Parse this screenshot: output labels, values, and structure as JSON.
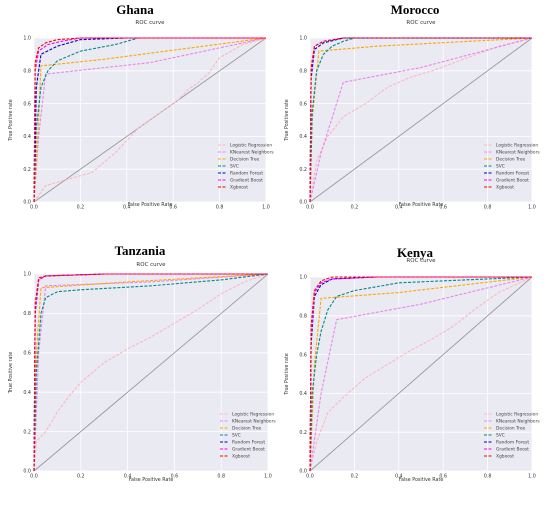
{
  "colors": {
    "Logistic Regression": "#ffb6c1",
    "KNearest Neighbors": "#ee82ee",
    "Decision Tree": "#ffa500",
    "SVC": "#008b8b",
    "Random Forest": "#0000cd",
    "Gradient Boost": "#ff00ff",
    "Xgboost": "#ff0000"
  },
  "chart_data": [
    {
      "type": "line",
      "country": "Ghana",
      "title": "ROC curve",
      "xlabel": "False Positive Rate",
      "ylabel": "True Positive rate",
      "xlim": [
        0,
        1
      ],
      "ylim": [
        0,
        1
      ],
      "xticks": [
        "0.0",
        "0.2",
        "0.4",
        "0.6",
        "0.8",
        "1.0"
      ],
      "yticks": [
        "0.0",
        "0.2",
        "0.4",
        "0.6",
        "0.8",
        "1.0"
      ],
      "grid": true,
      "legend_position": "bottom-right",
      "diagonal": true,
      "series": [
        {
          "name": "Logistic Regression",
          "x": [
            0,
            0.05,
            0.15,
            0.25,
            0.35,
            0.45,
            0.55,
            0.62,
            0.66,
            0.7,
            0.75,
            0.8,
            0.9,
            1.0
          ],
          "y": [
            0,
            0.1,
            0.14,
            0.18,
            0.3,
            0.45,
            0.55,
            0.62,
            0.68,
            0.72,
            0.78,
            0.88,
            0.96,
            1.0
          ]
        },
        {
          "name": "KNearest Neighbors",
          "x": [
            0,
            0.02,
            0.05,
            0.5,
            1.0
          ],
          "y": [
            0,
            0.4,
            0.78,
            0.85,
            1.0
          ]
        },
        {
          "name": "Decision Tree",
          "x": [
            0,
            0.02,
            0.03,
            0.3,
            1.0
          ],
          "y": [
            0,
            0.5,
            0.83,
            0.87,
            1.0
          ]
        },
        {
          "name": "SVC",
          "x": [
            0,
            0.01,
            0.03,
            0.06,
            0.1,
            0.2,
            0.35,
            0.45,
            1.0
          ],
          "y": [
            0,
            0.45,
            0.7,
            0.8,
            0.86,
            0.92,
            0.96,
            1.0,
            1.0
          ]
        },
        {
          "name": "Random Forest",
          "x": [
            0,
            0.01,
            0.03,
            0.1,
            0.2,
            0.4,
            1.0
          ],
          "y": [
            0,
            0.7,
            0.9,
            0.95,
            0.99,
            1.0,
            1.0
          ]
        },
        {
          "name": "Gradient Boost",
          "x": [
            0,
            0.005,
            0.02,
            0.06,
            0.12,
            0.2,
            1.0
          ],
          "y": [
            0,
            0.8,
            0.92,
            0.96,
            0.98,
            1.0,
            1.0
          ]
        },
        {
          "name": "Xgboost",
          "x": [
            0,
            0.005,
            0.02,
            0.05,
            0.1,
            0.2,
            1.0
          ],
          "y": [
            0,
            0.85,
            0.94,
            0.97,
            0.99,
            1.0,
            1.0
          ]
        }
      ]
    },
    {
      "type": "line",
      "country": "Morocco",
      "title": "ROC curve",
      "xlabel": "False Positive Rate",
      "ylabel": "True Positive rate",
      "xlim": [
        0,
        1
      ],
      "ylim": [
        0,
        1
      ],
      "xticks": [
        "0.0",
        "0.2",
        "0.4",
        "0.6",
        "0.8",
        "1.0"
      ],
      "yticks": [
        "0.0",
        "0.2",
        "0.4",
        "0.6",
        "0.8",
        "1.0"
      ],
      "grid": true,
      "legend_position": "bottom-right",
      "diagonal": true,
      "series": [
        {
          "name": "Logistic Regression",
          "x": [
            0,
            0.03,
            0.08,
            0.15,
            0.25,
            0.35,
            0.45,
            0.55,
            0.65,
            0.75,
            0.85,
            1.0
          ],
          "y": [
            0,
            0.25,
            0.4,
            0.52,
            0.6,
            0.7,
            0.76,
            0.8,
            0.85,
            0.9,
            0.95,
            1.0
          ]
        },
        {
          "name": "KNearest Neighbors",
          "x": [
            0,
            0.05,
            0.15,
            0.5,
            1.0
          ],
          "y": [
            0,
            0.3,
            0.73,
            0.82,
            1.0
          ]
        },
        {
          "name": "Decision Tree",
          "x": [
            0,
            0.01,
            0.04,
            0.3,
            1.0
          ],
          "y": [
            0,
            0.5,
            0.92,
            0.95,
            1.0
          ]
        },
        {
          "name": "SVC",
          "x": [
            0,
            0.01,
            0.03,
            0.06,
            0.1,
            0.15,
            0.2,
            1.0
          ],
          "y": [
            0,
            0.55,
            0.8,
            0.9,
            0.95,
            0.98,
            1.0,
            1.0
          ]
        },
        {
          "name": "Random Forest",
          "x": [
            0,
            0.005,
            0.02,
            0.06,
            0.15,
            1.0
          ],
          "y": [
            0,
            0.75,
            0.93,
            0.97,
            1.0,
            1.0
          ]
        },
        {
          "name": "Gradient Boost",
          "x": [
            0,
            0.005,
            0.02,
            0.06,
            0.15,
            1.0
          ],
          "y": [
            0,
            0.8,
            0.95,
            0.98,
            1.0,
            1.0
          ]
        },
        {
          "name": "Xgboost",
          "x": [
            0,
            0.005,
            0.02,
            0.06,
            0.15,
            1.0
          ],
          "y": [
            0,
            0.82,
            0.95,
            0.98,
            1.0,
            1.0
          ]
        }
      ]
    },
    {
      "type": "line",
      "country": "Tanzania",
      "title": "ROC curve",
      "xlabel": "False Positive Rate",
      "ylabel": "True Positive rate",
      "xlim": [
        0,
        1
      ],
      "ylim": [
        0,
        1
      ],
      "xticks": [
        "0.0",
        "0.2",
        "0.4",
        "0.6",
        "0.8",
        "1.0"
      ],
      "yticks": [
        "0.0",
        "0.2",
        "0.4",
        "0.6",
        "0.8",
        "1.0"
      ],
      "grid": true,
      "legend_position": "bottom-right",
      "diagonal": true,
      "series": [
        {
          "name": "Logistic Regression",
          "x": [
            0,
            0.01,
            0.05,
            0.1,
            0.15,
            0.2,
            0.3,
            0.4,
            0.5,
            0.6,
            0.7,
            0.8,
            0.9,
            1.0
          ],
          "y": [
            0,
            0.15,
            0.2,
            0.3,
            0.38,
            0.45,
            0.55,
            0.62,
            0.68,
            0.75,
            0.82,
            0.9,
            0.96,
            1.0
          ]
        },
        {
          "name": "KNearest Neighbors",
          "x": [
            0,
            0.02,
            0.05,
            0.5,
            1.0
          ],
          "y": [
            0,
            0.6,
            0.94,
            0.96,
            1.0
          ]
        },
        {
          "name": "Decision Tree",
          "x": [
            0,
            0.01,
            0.03,
            0.4,
            1.0
          ],
          "y": [
            0,
            0.6,
            0.93,
            0.96,
            1.0
          ]
        },
        {
          "name": "SVC",
          "x": [
            0,
            0.01,
            0.03,
            0.05,
            0.1,
            0.2,
            0.5,
            0.8,
            1.0
          ],
          "y": [
            0,
            0.5,
            0.8,
            0.88,
            0.91,
            0.92,
            0.94,
            0.97,
            1.0
          ]
        },
        {
          "name": "Random Forest",
          "x": [
            0,
            0.005,
            0.02,
            0.05,
            0.3,
            1.0
          ],
          "y": [
            0,
            0.8,
            0.97,
            0.99,
            1.0,
            1.0
          ]
        },
        {
          "name": "Gradient Boost",
          "x": [
            0,
            0.005,
            0.02,
            0.05,
            0.3,
            1.0
          ],
          "y": [
            0,
            0.82,
            0.97,
            0.99,
            1.0,
            1.0
          ]
        },
        {
          "name": "Xgboost",
          "x": [
            0,
            0.005,
            0.02,
            0.05,
            0.3,
            1.0
          ],
          "y": [
            0,
            0.85,
            0.98,
            0.99,
            1.0,
            1.0
          ]
        }
      ]
    },
    {
      "type": "line",
      "country": "Kenya",
      "title": "ROC curve",
      "xlabel": "False Positive Rate",
      "ylabel": "True Positive rate",
      "xlim": [
        0,
        1
      ],
      "ylim": [
        0,
        1
      ],
      "xticks": [
        "0.0",
        "0.2",
        "0.4",
        "0.6",
        "0.8",
        "1.0"
      ],
      "yticks": [
        "0.0",
        "0.2",
        "0.4",
        "0.6",
        "0.8",
        "1.0"
      ],
      "grid": true,
      "legend_position": "bottom-right",
      "diagonal": true,
      "series": [
        {
          "name": "Logistic Regression",
          "x": [
            0,
            0.03,
            0.08,
            0.15,
            0.25,
            0.35,
            0.45,
            0.55,
            0.65,
            0.75,
            0.85,
            1.0
          ],
          "y": [
            0,
            0.15,
            0.3,
            0.38,
            0.48,
            0.55,
            0.62,
            0.68,
            0.75,
            0.84,
            0.92,
            1.0
          ]
        },
        {
          "name": "KNearest Neighbors",
          "x": [
            0,
            0.05,
            0.12,
            0.5,
            1.0
          ],
          "y": [
            0,
            0.4,
            0.78,
            0.86,
            1.0
          ]
        },
        {
          "name": "Decision Tree",
          "x": [
            0,
            0.02,
            0.05,
            0.4,
            1.0
          ],
          "y": [
            0,
            0.55,
            0.89,
            0.92,
            1.0
          ]
        },
        {
          "name": "SVC",
          "x": [
            0,
            0.01,
            0.03,
            0.05,
            0.08,
            0.12,
            0.2,
            0.4,
            1.0
          ],
          "y": [
            0,
            0.4,
            0.6,
            0.72,
            0.83,
            0.9,
            0.93,
            0.97,
            1.0
          ]
        },
        {
          "name": "Random Forest",
          "x": [
            0,
            0.005,
            0.02,
            0.05,
            0.1,
            0.3,
            1.0
          ],
          "y": [
            0,
            0.65,
            0.9,
            0.96,
            0.99,
            1.0,
            1.0
          ]
        },
        {
          "name": "Gradient Boost",
          "x": [
            0,
            0.005,
            0.02,
            0.05,
            0.1,
            0.3,
            1.0
          ],
          "y": [
            0,
            0.7,
            0.92,
            0.97,
            0.99,
            1.0,
            1.0
          ]
        },
        {
          "name": "Xgboost",
          "x": [
            0,
            0.005,
            0.02,
            0.05,
            0.1,
            0.3,
            1.0
          ],
          "y": [
            0,
            0.75,
            0.93,
            0.98,
            1.0,
            1.0,
            1.0
          ]
        }
      ]
    }
  ]
}
